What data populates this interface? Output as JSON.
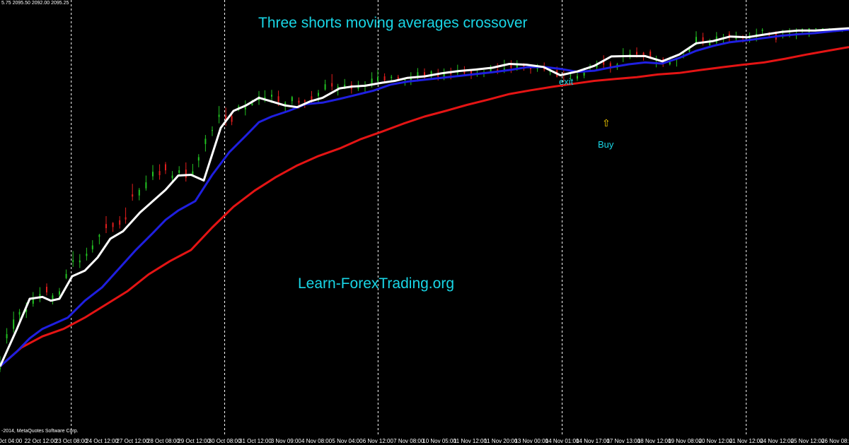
{
  "header": {
    "ohlc_readout": "5.75 2095.50 2092.00 2095.25"
  },
  "footer": {
    "copyright": "-2014, MetaQuotes Software Corp."
  },
  "colors": {
    "background": "#000000",
    "bull_candle": "#22c322",
    "bear_candle": "#e11d1d",
    "ma_fast": "#ffffff",
    "ma_mid": "#1f1fe0",
    "ma_slow": "#e41414",
    "text_accent": "#19d6e6",
    "arrow": "#ffd400"
  },
  "chart_data": {
    "type": "line",
    "chart_kind": "candlestick_with_moving_averages",
    "title": "Three shorts moving averages crossover",
    "watermark": "Learn-ForexTrading.org",
    "annotations": [
      {
        "text": "exit",
        "at": "14 Nov 01:00"
      },
      {
        "text": "Buy",
        "at": "17 Nov 13:00",
        "icon": "up-arrow-icon"
      }
    ],
    "x_labels": [
      "Oct 04:00",
      "22 Oct 12:00",
      "23 Oct 08:00",
      "24 Oct 12:00",
      "27 Oct 12:00",
      "28 Oct 08:00",
      "29 Oct 12:00",
      "30 Oct 08:00",
      "31 Oct 12:00",
      "3 Nov 09:00",
      "4 Nov 08:00",
      "5 Nov 04:00",
      "6 Nov 12:00",
      "7 Nov 08:00",
      "10 Nov 05:00",
      "11 Nov 12:00",
      "11 Nov 20:00",
      "13 Nov 00:00",
      "14 Nov 01:00",
      "14 Nov 17:00",
      "17 Nov 13:00",
      "18 Nov 12:00",
      "19 Nov 08:00",
      "20 Nov 12:00",
      "21 Nov 12:00",
      "24 Nov 12:00",
      "25 Nov 12:00",
      "26 Nov 08:00"
    ],
    "separators_at": [
      "23 Oct 08:00",
      "30 Oct 08:00",
      "6 Nov 12:00",
      "14 Nov 01:00",
      "21 Nov 12:00"
    ],
    "x_range": [
      0,
      100
    ],
    "y_range": [
      0,
      100
    ],
    "grid": false,
    "series": [
      {
        "name": "",
        "color_key": "ma_fast",
        "x": [
          0,
          2,
          3.5,
          5,
          6,
          7,
          8.5,
          10,
          11.5,
          13,
          14.5,
          16.5,
          18,
          19.5,
          21,
          22.5,
          24,
          26,
          27.5,
          29,
          30.5,
          32,
          33.5,
          35,
          36.5,
          38,
          40,
          41.5,
          43,
          45,
          46.5,
          48,
          50,
          52,
          54,
          56,
          58,
          60,
          62,
          64,
          66,
          68,
          70,
          72,
          74,
          76,
          78,
          80,
          82,
          84,
          86,
          88,
          90,
          92,
          94,
          96,
          98,
          100
        ],
        "y": [
          10,
          20,
          28,
          28.5,
          27.5,
          28,
          34,
          35.5,
          39,
          44,
          46,
          51,
          54,
          57,
          60.8,
          61,
          59.5,
          73.5,
          78,
          79.5,
          81.5,
          80.5,
          79.5,
          79,
          80.5,
          81.5,
          84,
          84.5,
          84.7,
          85.5,
          86,
          86.8,
          87.2,
          88,
          88.6,
          89,
          89.5,
          90.5,
          90.3,
          89.7,
          87.5,
          88.5,
          90,
          92.5,
          92.6,
          92.6,
          91.2,
          93,
          96,
          96.6,
          97.8,
          97.6,
          98.3,
          99,
          99.4,
          99.4,
          99.7,
          100
        ]
      },
      {
        "name": "",
        "color_key": "ma_mid",
        "x": [
          0,
          2,
          3.5,
          5,
          6.5,
          8,
          10,
          12,
          14,
          16,
          18,
          19.5,
          21,
          23,
          25,
          27,
          29,
          30.5,
          32,
          34,
          36,
          38,
          40,
          42,
          44,
          46,
          48,
          50,
          52,
          54,
          56,
          58,
          60,
          62,
          64,
          66,
          68,
          70,
          72,
          74,
          76,
          78,
          80,
          82,
          84,
          86,
          88,
          90,
          92,
          94,
          96,
          98,
          100
        ],
        "y": [
          10,
          14,
          17.5,
          20,
          21.5,
          23,
          27.5,
          31,
          36,
          41,
          45.5,
          49,
          51.5,
          54,
          61,
          67,
          71.5,
          75,
          76.5,
          78,
          79.8,
          80.2,
          81.2,
          82.3,
          83.4,
          85,
          85.8,
          86.3,
          86.8,
          87.3,
          87.8,
          88.3,
          88.9,
          89.6,
          89.7,
          89.2,
          88.4,
          88.7,
          89.6,
          90.4,
          90.9,
          90.6,
          92.1,
          94,
          95.3,
          96.3,
          96.8,
          97.4,
          98,
          98.4,
          98.7,
          99.2,
          99.6
        ]
      },
      {
        "name": "",
        "color_key": "ma_slow",
        "x": [
          0,
          2.5,
          5,
          7.5,
          10,
          12.5,
          15,
          17.5,
          20,
          22.5,
          25,
          27.5,
          30,
          32.5,
          35,
          37.5,
          40,
          42.5,
          45,
          47.5,
          50,
          52.5,
          55,
          57.5,
          60,
          62.5,
          65,
          67.5,
          70,
          72.5,
          75,
          77.5,
          80,
          82.5,
          85,
          87.5,
          90,
          92.5,
          95,
          97.5,
          100
        ],
        "y": [
          10,
          15,
          18,
          20,
          23,
          26.5,
          30,
          34.5,
          38,
          41,
          47,
          52.5,
          56.8,
          60.4,
          63.5,
          66,
          68,
          70.5,
          72.5,
          74.6,
          76.5,
          78,
          79.6,
          81,
          82.5,
          83.5,
          84.4,
          85.2,
          86,
          86.5,
          87,
          87.7,
          88.1,
          88.9,
          89.6,
          90.3,
          90.9,
          91.9,
          93,
          94,
          95
        ]
      }
    ],
    "candles": {
      "ohlc": [
        [
          0.0,
          9.2,
          8.5,
          11.0,
          12.7
        ],
        [
          0.8,
          17.5,
          16.1,
          18.6,
          20.2
        ],
        [
          1.6,
          20.0,
          19.0,
          22.5,
          24.6
        ],
        [
          2.3,
          23.8,
          22.0,
          24.5,
          25.3
        ],
        [
          3.1,
          24.5,
          22.9,
          25.2,
          27.0
        ],
        [
          3.9,
          26.7,
          25.9,
          28.0,
          29.8
        ],
        [
          4.7,
          28.1,
          27.1,
          29.3,
          31.1
        ],
        [
          5.5,
          31.2,
          28.9,
          29.7,
          32.1
        ],
        [
          6.2,
          27.7,
          26.5,
          28.9,
          29.5
        ],
        [
          7.0,
          29.1,
          27.8,
          30.0,
          30.9
        ],
        [
          7.8,
          33.5,
          33.2,
          34.6,
          35.8
        ],
        [
          8.6,
          37.8,
          36.5,
          38.3,
          40.7
        ],
        [
          9.4,
          37.7,
          36.2,
          38.2,
          39.9
        ],
        [
          10.2,
          39.4,
          38.2,
          40.0,
          41.6
        ],
        [
          10.9,
          41.2,
          40.3,
          42.2,
          43.6
        ],
        [
          11.7,
          44.5,
          42.5,
          45.0,
          45.3
        ],
        [
          12.5,
          47.9,
          45.5,
          46.8,
          50.0
        ],
        [
          13.3,
          48.2,
          45.8,
          47.1,
          48.4
        ],
        [
          14.1,
          48.9,
          46.7,
          47.7,
          50.0
        ],
        [
          14.8,
          49.7,
          48.0,
          49.1,
          52.3
        ],
        [
          15.6,
          55.8,
          54.1,
          55.2,
          58.6
        ],
        [
          16.4,
          55.5,
          54.2,
          57.0,
          57.5
        ],
        [
          17.2,
          57.4,
          56.8,
          59.0,
          60.8
        ],
        [
          18.0,
          60.6,
          59.6,
          61.8,
          63.6
        ],
        [
          18.8,
          62.0,
          59.7,
          60.9,
          63.8
        ],
        [
          19.5,
          63.8,
          61.2,
          62.2,
          64.4
        ],
        [
          20.3,
          60.1,
          58.8,
          60.8,
          62.0
        ],
        [
          21.1,
          61.5,
          60.7,
          62.2,
          63.3
        ],
        [
          21.9,
          62.4,
          59.2,
          60.2,
          64.3
        ],
        [
          22.7,
          61.0,
          60.6,
          61.9,
          63.9
        ],
        [
          23.4,
          64.8,
          63.0,
          65.7,
          66.5
        ],
        [
          24.2,
          69.2,
          67.2,
          70.6,
          71.6
        ],
        [
          25.0,
          72.7,
          71.3,
          72.9,
          73.9
        ],
        [
          25.8,
          76.4,
          74.7,
          77.0,
          79.3
        ],
        [
          26.6,
          76.8,
          74.0,
          75.2,
          78.9
        ],
        [
          27.3,
          76.6,
          74.2,
          75.1,
          77.6
        ],
        [
          28.1,
          78.3,
          77.9,
          79.2,
          79.7
        ],
        [
          28.9,
          78.4,
          76.8,
          79.0,
          80.8
        ],
        [
          29.7,
          79.5,
          79.4,
          80.0,
          81.0
        ],
        [
          30.5,
          80.8,
          79.6,
          81.9,
          83.3
        ],
        [
          31.2,
          81.3,
          80.3,
          81.7,
          83.5
        ],
        [
          32.0,
          81.8,
          80.1,
          82.3,
          83.6
        ],
        [
          32.8,
          81.9,
          79.3,
          80.4,
          83.4
        ],
        [
          33.6,
          79.4,
          77.9,
          80.2,
          80.6
        ],
        [
          34.4,
          80.6,
          79.6,
          81.7,
          82.0
        ],
        [
          35.2,
          80.7,
          78.6,
          80.2,
          81.6
        ],
        [
          35.9,
          80.8,
          78.8,
          80.4,
          81.1
        ],
        [
          36.7,
          81.9,
          79.7,
          80.5,
          83.3
        ],
        [
          37.5,
          82.0,
          80.2,
          82.8,
          83.6
        ],
        [
          38.3,
          83.7,
          83.4,
          85.1,
          86.3
        ],
        [
          39.1,
          85.4,
          83.4,
          84.5,
          87.8
        ],
        [
          39.8,
          83.6,
          82.1,
          84.5,
          85.2
        ],
        [
          40.6,
          83.9,
          83.8,
          85.0,
          86.5
        ],
        [
          41.4,
          85.0,
          82.6,
          83.8,
          85.9
        ],
        [
          42.2,
          83.9,
          83.3,
          84.6,
          86.0
        ],
        [
          43.0,
          84.7,
          82.7,
          84.8,
          85.9
        ],
        [
          43.8,
          85.3,
          84.2,
          86.6,
          88.3
        ],
        [
          44.5,
          86.0,
          85.6,
          87.0,
          88.9
        ],
        [
          45.3,
          87.2,
          85.8,
          86.1,
          88.0
        ],
        [
          46.1,
          86.8,
          86.0,
          87.1,
          87.6
        ],
        [
          46.9,
          87.1,
          86.0,
          86.4,
          87.6
        ],
        [
          47.7,
          86.1,
          84.7,
          86.3,
          86.5
        ],
        [
          48.4,
          86.1,
          84.9,
          86.9,
          88.3
        ],
        [
          49.2,
          87.0,
          85.8,
          88.3,
          89.4
        ],
        [
          50.0,
          88.3,
          86.5,
          87.4,
          89.3
        ],
        [
          50.8,
          87.2,
          86.6,
          88.5,
          88.8
        ],
        [
          51.6,
          87.8,
          86.1,
          87.1,
          89.2
        ],
        [
          52.3,
          86.9,
          86.2,
          88.1,
          89.3
        ],
        [
          53.1,
          88.4,
          86.4,
          87.8,
          89.5
        ],
        [
          53.9,
          88.1,
          87.1,
          88.5,
          90.3
        ],
        [
          54.7,
          88.9,
          87.7,
          88.0,
          89.9
        ],
        [
          55.5,
          88.7,
          86.5,
          87.6,
          88.8
        ],
        [
          56.2,
          87.8,
          87.1,
          88.0,
          89.3
        ],
        [
          57.0,
          87.8,
          87.0,
          88.1,
          88.9
        ],
        [
          57.8,
          88.5,
          88.3,
          89.3,
          90.2
        ],
        [
          58.6,
          89.0,
          87.8,
          88.6,
          90.7
        ],
        [
          59.4,
          88.8,
          88.1,
          89.3,
          91.6
        ],
        [
          60.2,
          90.4,
          88.1,
          89.5,
          91.5
        ],
        [
          60.9,
          89.4,
          88.7,
          90.4,
          91.5
        ],
        [
          61.7,
          90.2,
          88.7,
          89.2,
          90.7
        ],
        [
          62.5,
          90.1,
          87.9,
          89.1,
          90.3
        ],
        [
          63.3,
          89.2,
          88.4,
          89.8,
          90.5
        ],
        [
          64.1,
          90.0,
          88.5,
          89.0,
          90.9
        ],
        [
          64.8,
          88.4,
          87.5,
          89.0,
          89.5
        ],
        [
          65.6,
          88.8,
          86.9,
          87.1,
          89.8
        ],
        [
          66.4,
          87.6,
          85.7,
          87.5,
          89.1
        ],
        [
          67.2,
          87.4,
          86.2,
          87.5,
          88.2
        ],
        [
          68.0,
          86.6,
          86.0,
          87.3,
          88.2
        ],
        [
          68.8,
          87.4,
          86.7,
          88.2,
          89.5
        ],
        [
          69.5,
          89.4,
          88.7,
          89.6,
          90.5
        ],
        [
          70.3,
          89.6,
          88.8,
          90.5,
          91.4
        ],
        [
          71.1,
          91.6,
          89.4,
          90.3,
          92.8
        ],
        [
          71.9,
          90.7,
          88.2,
          89.5,
          91.2
        ],
        [
          72.7,
          89.5,
          88.9,
          90.4,
          90.8
        ],
        [
          73.4,
          92.3,
          91.0,
          92.7,
          94.7
        ],
        [
          74.2,
          92.5,
          91.8,
          93.1,
          94.3
        ],
        [
          75.0,
          93.7,
          92.2,
          93.0,
          94.9
        ],
        [
          75.8,
          93.5,
          91.4,
          92.7,
          93.7
        ],
        [
          76.6,
          93.8,
          91.8,
          92.1,
          94.3
        ],
        [
          77.3,
          91.4,
          89.6,
          91.6,
          92.7
        ],
        [
          78.1,
          91.8,
          89.7,
          90.5,
          92.3
        ],
        [
          78.9,
          90.4,
          90.1,
          91.0,
          92.4
        ],
        [
          79.7,
          91.6,
          89.8,
          92.0,
          92.2
        ],
        [
          80.5,
          92.5,
          92.0,
          92.9,
          93.8
        ],
        [
          81.2,
          93.8,
          93.2,
          94.8,
          95.2
        ],
        [
          82.0,
          96.1,
          95.5,
          97.7,
          99.2
        ],
        [
          82.8,
          97.6,
          95.4,
          96.0,
          98.8
        ],
        [
          83.6,
          95.5,
          95.1,
          96.3,
          97.2
        ],
        [
          84.4,
          96.2,
          95.8,
          97.8,
          99.0
        ],
        [
          85.2,
          97.3,
          96.0,
          97.6,
          98.5
        ],
        [
          85.9,
          98.5,
          96.4,
          97.4,
          99.2
        ],
        [
          86.7,
          97.2,
          96.4,
          97.8,
          99.1
        ],
        [
          87.5,
          97.9,
          96.2,
          97.3,
          98.2
        ],
        [
          88.3,
          97.3,
          96.2,
          98.1,
          98.9
        ],
        [
          89.1,
          97.9,
          96.5,
          98.5,
          99.9
        ],
        [
          89.8,
          99.3,
          98.5,
          99.6,
          100.0
        ],
        [
          90.6,
          98.8,
          97.5,
          98.1,
          99.0
        ],
        [
          91.4,
          98.7,
          96.2,
          97.0,
          99.2
        ],
        [
          92.2,
          97.9,
          97.3,
          98.0,
          99.6
        ],
        [
          93.0,
          98.5,
          97.6,
          98.6,
          100.0
        ],
        [
          93.8,
          98.6,
          97.1,
          98.7,
          100.0
        ],
        [
          94.5,
          99.6,
          98.4,
          99.8,
          100.0
        ],
        [
          95.3,
          99.0,
          97.7,
          100.0,
          100.0
        ],
        [
          96.1,
          99.9,
          99.3,
          100.0,
          100.0
        ],
        [
          96.9,
          100.0,
          99.6,
          100.0,
          100.0
        ],
        [
          97.7,
          100.0,
          99.2,
          100.0,
          100.0
        ],
        [
          98.4,
          100.0,
          99.0,
          100.0,
          100.0
        ],
        [
          99.2,
          100.0,
          99.0,
          100.0,
          100.0
        ]
      ],
      "ohlc_order": [
        "x",
        "open",
        "low",
        "close",
        "high"
      ]
    }
  }
}
